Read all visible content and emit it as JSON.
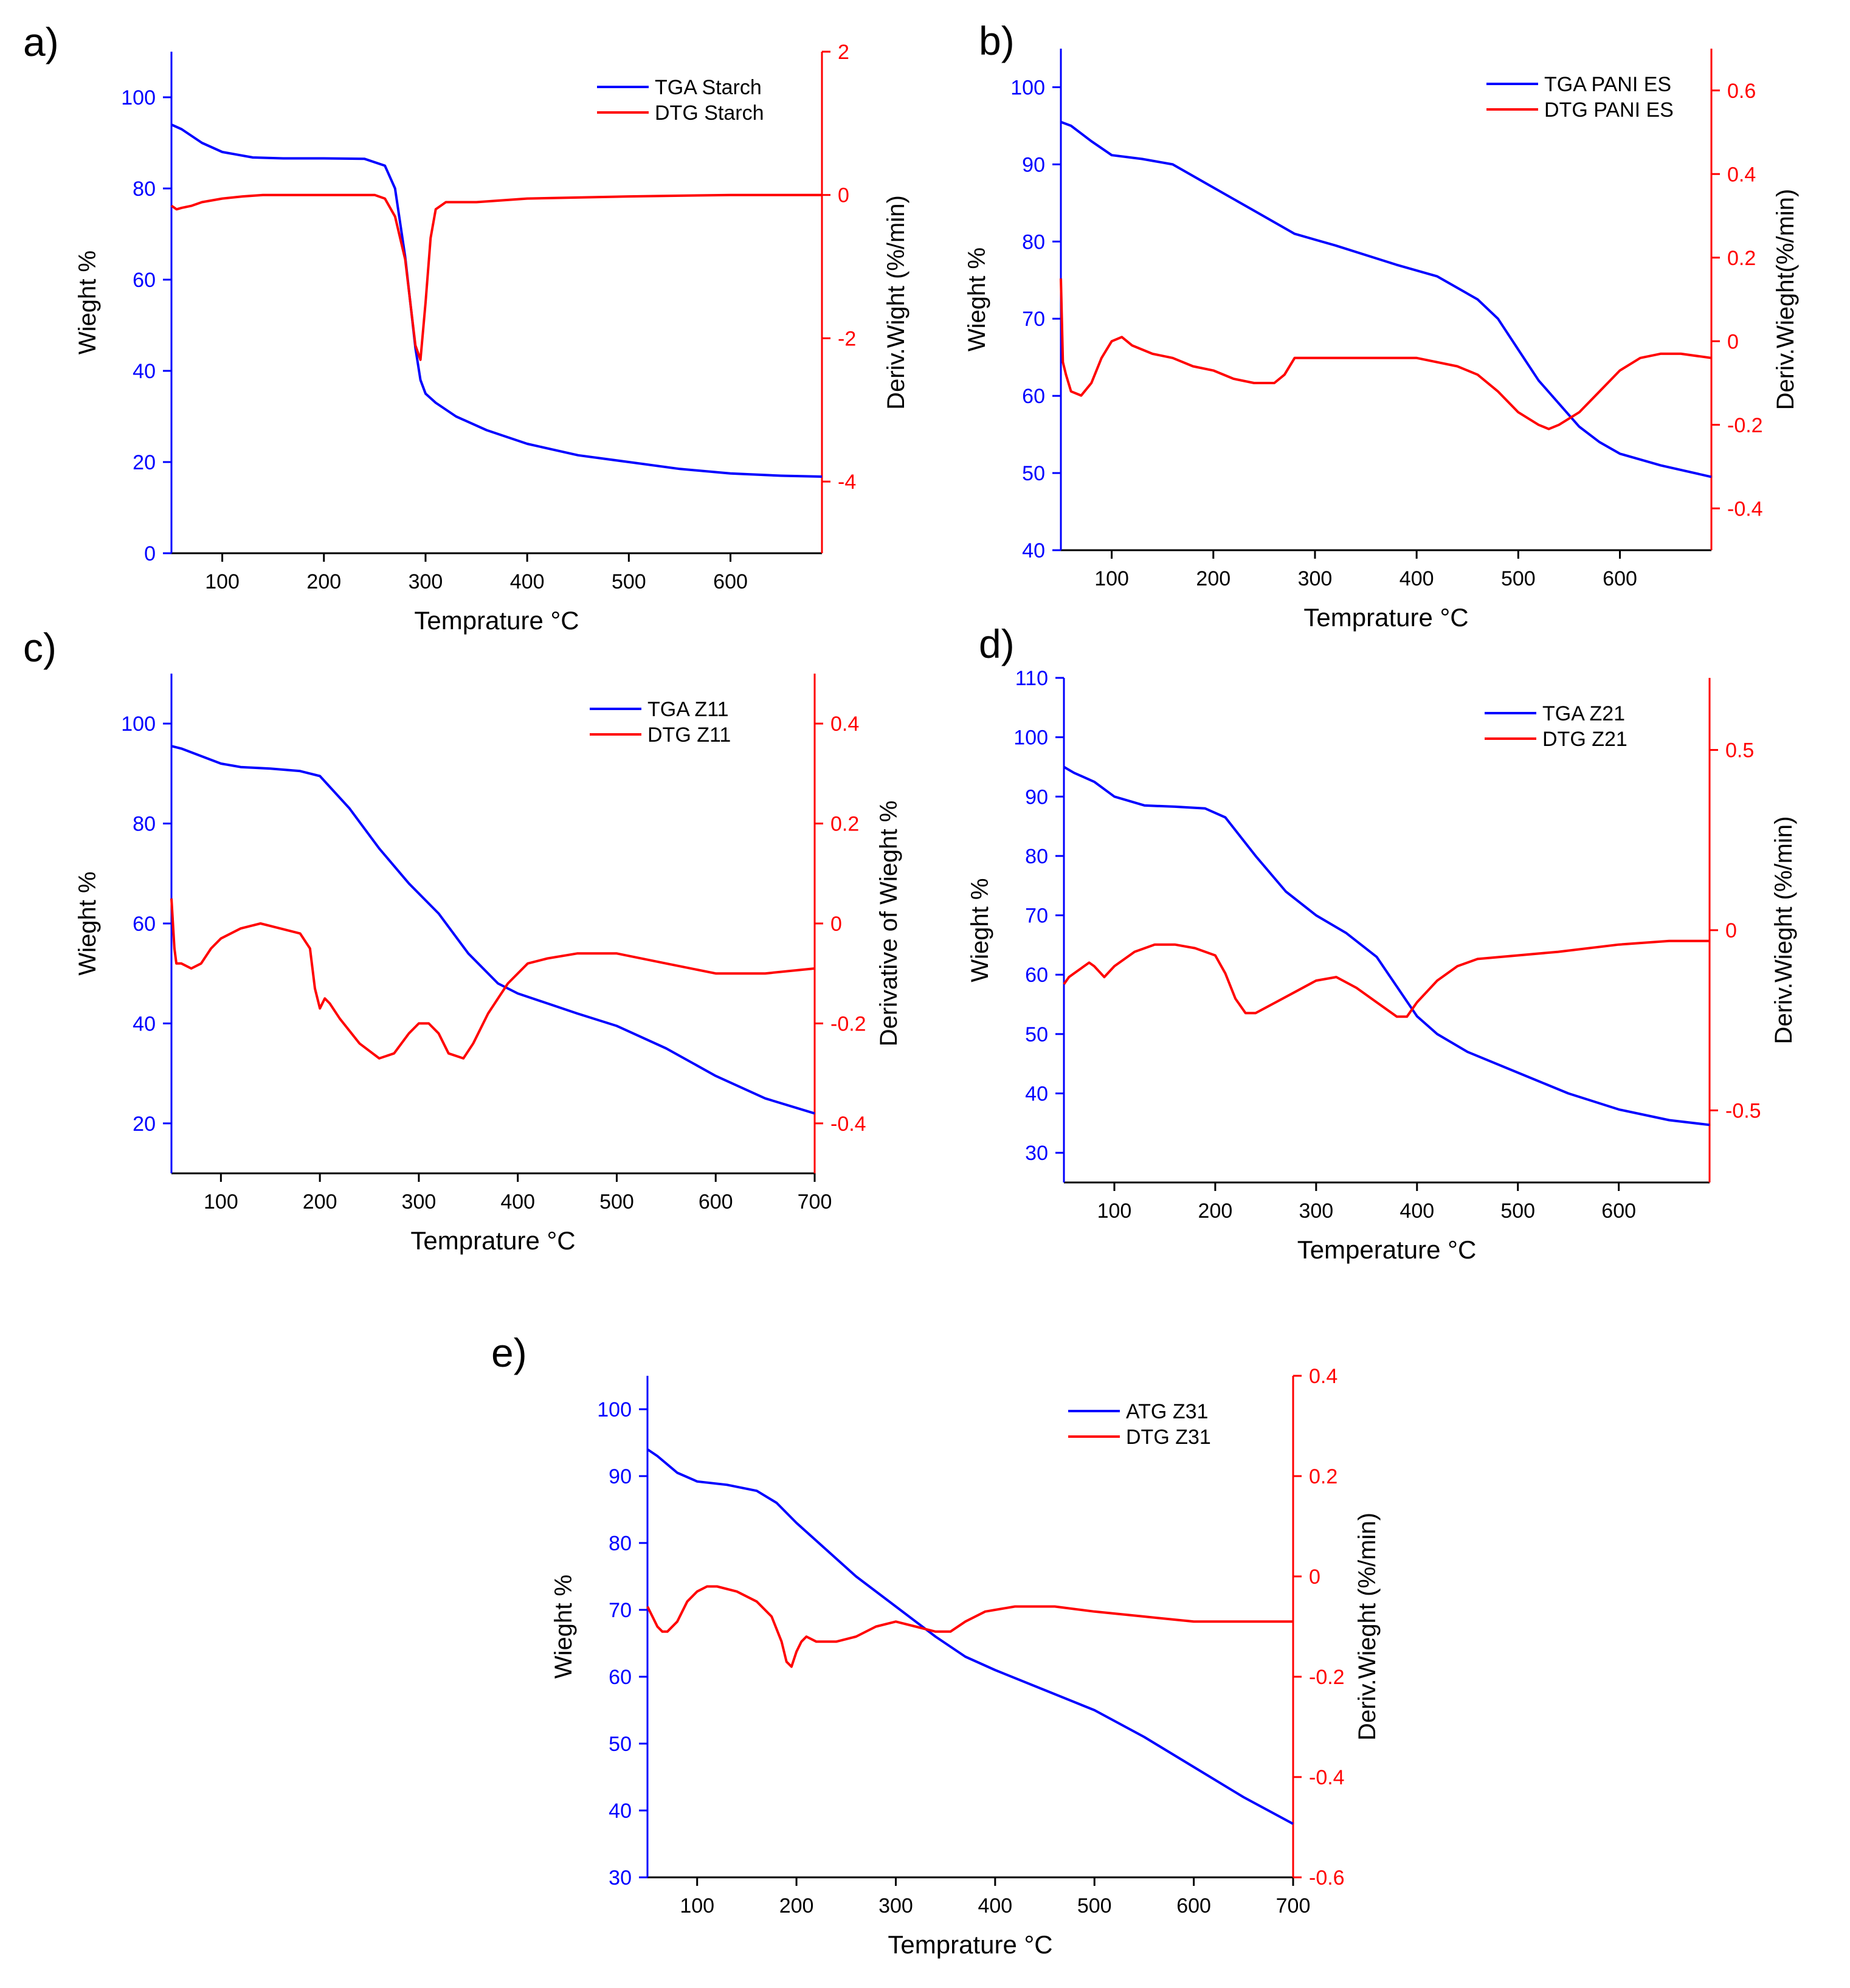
{
  "figure": {
    "colors": {
      "tga": "#0000ff",
      "dtg": "#ff0000",
      "axis": "#000000"
    }
  },
  "chart_data": [
    {
      "id": "a",
      "panel_label": "a)",
      "type": "line",
      "xlabel": "Temprature °C",
      "ylabel_left": "Wieght %",
      "ylabel_right": "Deriv.Wight (%/min)",
      "xlim": [
        50,
        690
      ],
      "ylim_left": [
        0,
        110
      ],
      "ylim_right": [
        -5,
        2
      ],
      "xticks": [
        100,
        200,
        300,
        400,
        500,
        600
      ],
      "yticks_left": [
        0,
        20,
        40,
        60,
        80,
        100
      ],
      "yticks_right": [
        -4,
        -2,
        0,
        2
      ],
      "legend_position": "top-right",
      "series": [
        {
          "name": "TGA Starch",
          "axis": "left",
          "x": [
            50,
            60,
            80,
            100,
            130,
            160,
            200,
            240,
            260,
            270,
            280,
            290,
            295,
            300,
            310,
            330,
            360,
            400,
            450,
            500,
            550,
            600,
            650,
            690
          ],
          "y": [
            94,
            93,
            90,
            88,
            86.8,
            86.6,
            86.6,
            86.5,
            85,
            80,
            65,
            45,
            38,
            35,
            33,
            30,
            27,
            24,
            21.5,
            20,
            18.5,
            17.5,
            17,
            16.8
          ]
        },
        {
          "name": "DTG Starch",
          "axis": "right",
          "x": [
            50,
            55,
            60,
            70,
            80,
            100,
            120,
            140,
            200,
            250,
            260,
            270,
            280,
            290,
            295,
            300,
            305,
            310,
            320,
            350,
            400,
            500,
            600,
            690
          ],
          "y": [
            -0.15,
            -0.2,
            -0.18,
            -0.15,
            -0.1,
            -0.05,
            -0.02,
            0,
            0,
            0,
            -0.05,
            -0.3,
            -0.9,
            -2.1,
            -2.3,
            -1.5,
            -0.6,
            -0.2,
            -0.1,
            -0.1,
            -0.05,
            -0.02,
            0,
            0
          ]
        }
      ]
    },
    {
      "id": "b",
      "panel_label": "b)",
      "type": "line",
      "xlabel": "Temprature °C",
      "ylabel_left": "Wieght %",
      "ylabel_right": "Deriv.Wieght(%/min)",
      "xlim": [
        50,
        690
      ],
      "ylim_left": [
        40,
        105
      ],
      "ylim_right": [
        -0.5,
        0.7
      ],
      "xticks": [
        100,
        200,
        300,
        400,
        500,
        600
      ],
      "yticks_left": [
        40,
        50,
        60,
        70,
        80,
        90,
        100
      ],
      "yticks_right": [
        -0.4,
        -0.2,
        0.0,
        0.2,
        0.4,
        0.6
      ],
      "legend_position": "top-right",
      "series": [
        {
          "name": "TGA PANI ES",
          "axis": "left",
          "x": [
            50,
            60,
            80,
            100,
            130,
            160,
            200,
            240,
            280,
            320,
            380,
            420,
            460,
            480,
            500,
            520,
            540,
            560,
            580,
            600,
            640,
            690
          ],
          "y": [
            95.5,
            95,
            93,
            91.2,
            90.7,
            90,
            87,
            84,
            81,
            79.5,
            77,
            75.5,
            72.5,
            70,
            66,
            62,
            59,
            56,
            54,
            52.5,
            51,
            49.5
          ]
        },
        {
          "name": "DTG PANI ES",
          "axis": "right",
          "x": [
            50,
            52,
            55,
            60,
            70,
            80,
            90,
            100,
            110,
            120,
            140,
            160,
            180,
            200,
            220,
            240,
            260,
            270,
            280,
            290,
            300,
            350,
            400,
            440,
            460,
            480,
            500,
            520,
            530,
            540,
            560,
            580,
            600,
            620,
            640,
            660,
            690
          ],
          "y": [
            0.15,
            -0.05,
            -0.08,
            -0.12,
            -0.13,
            -0.1,
            -0.04,
            0,
            0.01,
            -0.01,
            -0.03,
            -0.04,
            -0.06,
            -0.07,
            -0.09,
            -0.1,
            -0.1,
            -0.08,
            -0.04,
            -0.04,
            -0.04,
            -0.04,
            -0.04,
            -0.06,
            -0.08,
            -0.12,
            -0.17,
            -0.2,
            -0.21,
            -0.2,
            -0.17,
            -0.12,
            -0.07,
            -0.04,
            -0.03,
            -0.03,
            -0.04
          ]
        }
      ]
    },
    {
      "id": "c",
      "panel_label": "c)",
      "type": "line",
      "xlabel": "Temprature °C",
      "ylabel_left": "Wieght %",
      "ylabel_right": "Derivative of Wieght %",
      "xlim": [
        50,
        700
      ],
      "ylim_left": [
        10,
        110
      ],
      "ylim_right": [
        -0.5,
        0.5
      ],
      "xticks": [
        100,
        200,
        300,
        400,
        500,
        600,
        700
      ],
      "yticks_left": [
        20,
        40,
        60,
        80,
        100
      ],
      "yticks_right": [
        -0.4,
        -0.2,
        0.0,
        0.2,
        0.4
      ],
      "legend_position": "top-right",
      "series": [
        {
          "name": "TGA Z11",
          "axis": "left",
          "x": [
            50,
            60,
            80,
            100,
            120,
            150,
            180,
            200,
            230,
            260,
            290,
            320,
            350,
            380,
            400,
            430,
            460,
            500,
            550,
            600,
            650,
            700
          ],
          "y": [
            95.5,
            95,
            93.5,
            92,
            91.3,
            91,
            90.5,
            89.5,
            83,
            75,
            68,
            62,
            54,
            48,
            46,
            44,
            42,
            39.5,
            35,
            29.5,
            25,
            22
          ]
        },
        {
          "name": "DTG Z11",
          "axis": "right",
          "x": [
            50,
            53,
            55,
            60,
            70,
            80,
            90,
            100,
            120,
            140,
            160,
            180,
            190,
            195,
            200,
            205,
            210,
            220,
            240,
            260,
            275,
            290,
            300,
            310,
            320,
            330,
            345,
            355,
            370,
            390,
            410,
            430,
            460,
            500,
            550,
            600,
            650,
            700
          ],
          "y": [
            0.05,
            -0.05,
            -0.08,
            -0.08,
            -0.09,
            -0.08,
            -0.05,
            -0.03,
            -0.01,
            0,
            -0.01,
            -0.02,
            -0.05,
            -0.13,
            -0.17,
            -0.15,
            -0.16,
            -0.19,
            -0.24,
            -0.27,
            -0.26,
            -0.22,
            -0.2,
            -0.2,
            -0.22,
            -0.26,
            -0.27,
            -0.24,
            -0.18,
            -0.12,
            -0.08,
            -0.07,
            -0.06,
            -0.06,
            -0.08,
            -0.1,
            -0.1,
            -0.09
          ]
        }
      ]
    },
    {
      "id": "d",
      "panel_label": "d)",
      "type": "line",
      "xlabel": "Temperature °C",
      "ylabel_left": "Wieght %",
      "ylabel_right": "Deriv.Wieght (%/min)",
      "xlim": [
        50,
        690
      ],
      "ylim_left": [
        25,
        110
      ],
      "ylim_right": [
        -0.7,
        0.7
      ],
      "xticks": [
        100,
        200,
        300,
        400,
        500,
        600
      ],
      "yticks_left": [
        30,
        40,
        50,
        60,
        70,
        80,
        90,
        100,
        110
      ],
      "yticks_right": [
        -0.5,
        0.0,
        0.5
      ],
      "legend_position": "top-right",
      "series": [
        {
          "name": "TGA Z21",
          "axis": "left",
          "x": [
            50,
            60,
            80,
            100,
            130,
            160,
            190,
            210,
            240,
            270,
            300,
            330,
            360,
            380,
            400,
            420,
            450,
            500,
            550,
            600,
            650,
            690
          ],
          "y": [
            95,
            94,
            92.5,
            90,
            88.5,
            88.3,
            88,
            86.5,
            80,
            74,
            70,
            67,
            63,
            58,
            53,
            50,
            47,
            43.5,
            40,
            37.3,
            35.5,
            34.7
          ]
        },
        {
          "name": "DTG Z21",
          "axis": "right",
          "x": [
            50,
            55,
            60,
            70,
            75,
            80,
            90,
            100,
            120,
            140,
            160,
            180,
            200,
            210,
            220,
            230,
            240,
            260,
            280,
            300,
            320,
            340,
            360,
            380,
            390,
            400,
            420,
            440,
            460,
            500,
            540,
            600,
            650,
            690
          ],
          "y": [
            -0.15,
            -0.13,
            -0.12,
            -0.1,
            -0.09,
            -0.1,
            -0.13,
            -0.1,
            -0.06,
            -0.04,
            -0.04,
            -0.05,
            -0.07,
            -0.12,
            -0.19,
            -0.23,
            -0.23,
            -0.2,
            -0.17,
            -0.14,
            -0.13,
            -0.16,
            -0.2,
            -0.24,
            -0.24,
            -0.2,
            -0.14,
            -0.1,
            -0.08,
            -0.07,
            -0.06,
            -0.04,
            -0.03,
            -0.03
          ]
        }
      ]
    },
    {
      "id": "e",
      "panel_label": "e)",
      "type": "line",
      "xlabel": "Temprature °C",
      "ylabel_left": "Wieght %",
      "ylabel_right": "Deriv.Wieght (%/min)",
      "xlim": [
        50,
        700
      ],
      "ylim_left": [
        30,
        105
      ],
      "ylim_right": [
        -0.6,
        0.4
      ],
      "xticks": [
        100,
        200,
        300,
        400,
        500,
        600,
        700
      ],
      "yticks_left": [
        30,
        40,
        50,
        60,
        70,
        80,
        90,
        100
      ],
      "yticks_right": [
        -0.6,
        -0.4,
        -0.2,
        0.0,
        0.2,
        0.4
      ],
      "legend_position": "top-right",
      "series": [
        {
          "name": "ATG Z31",
          "axis": "left",
          "x": [
            50,
            60,
            80,
            100,
            130,
            160,
            180,
            200,
            230,
            260,
            300,
            340,
            370,
            400,
            450,
            500,
            550,
            600,
            650,
            700
          ],
          "y": [
            94,
            93,
            90.5,
            89.2,
            88.7,
            87.8,
            86,
            83,
            79,
            75,
            70.5,
            66,
            63,
            61,
            58,
            55,
            51,
            46.5,
            42,
            38
          ]
        },
        {
          "name": "DTG Z31",
          "axis": "right",
          "x": [
            50,
            55,
            60,
            65,
            70,
            80,
            90,
            100,
            110,
            120,
            140,
            160,
            175,
            185,
            190,
            195,
            200,
            205,
            210,
            220,
            240,
            260,
            280,
            300,
            320,
            340,
            355,
            370,
            390,
            420,
            460,
            500,
            550,
            600,
            650,
            700
          ],
          "y": [
            -0.06,
            -0.08,
            -0.1,
            -0.11,
            -0.11,
            -0.09,
            -0.05,
            -0.03,
            -0.02,
            -0.02,
            -0.03,
            -0.05,
            -0.08,
            -0.13,
            -0.17,
            -0.18,
            -0.15,
            -0.13,
            -0.12,
            -0.13,
            -0.13,
            -0.12,
            -0.1,
            -0.09,
            -0.1,
            -0.11,
            -0.11,
            -0.09,
            -0.07,
            -0.06,
            -0.06,
            -0.07,
            -0.08,
            -0.09,
            -0.09,
            -0.09
          ]
        }
      ]
    }
  ]
}
